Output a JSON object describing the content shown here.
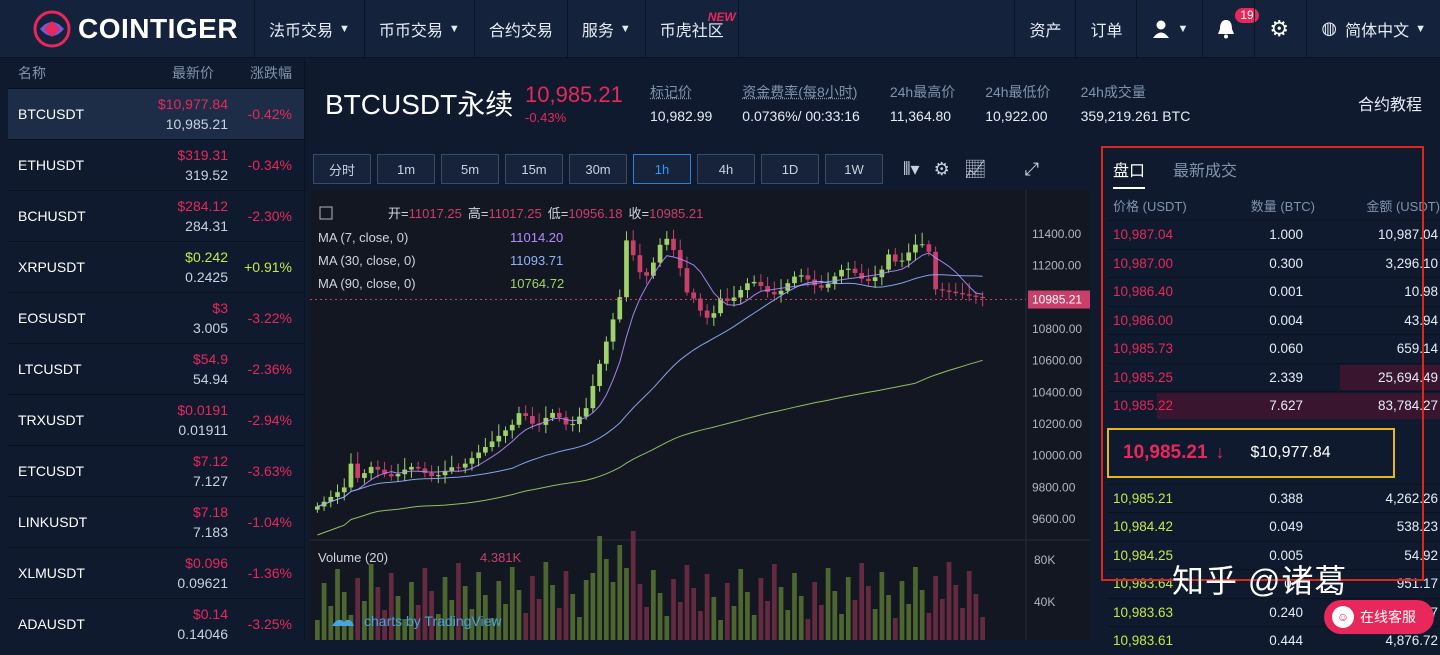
{
  "brand": {
    "name": "COINTIGER"
  },
  "nav": {
    "items": [
      {
        "label": "法币交易",
        "caret": true
      },
      {
        "label": "币币交易",
        "caret": true
      },
      {
        "label": "合约交易",
        "caret": false
      },
      {
        "label": "服务",
        "caret": true
      },
      {
        "label": "币虎社区",
        "caret": false,
        "badge": "NEW"
      }
    ],
    "right": {
      "assets": "资产",
      "orders": "订单",
      "notifications": "19",
      "language": "简体中文"
    }
  },
  "market": {
    "headers": {
      "name": "名称",
      "price": "最新价",
      "change": "涨跌幅"
    },
    "rows": [
      {
        "symbol": "BTCUSDT",
        "price_usd": "$10,977.84",
        "price": "10,985.21",
        "change": "-0.42%",
        "up": false
      },
      {
        "symbol": "ETHUSDT",
        "price_usd": "$319.31",
        "price": "319.52",
        "change": "-0.34%",
        "up": false
      },
      {
        "symbol": "BCHUSDT",
        "price_usd": "$284.12",
        "price": "284.31",
        "change": "-2.30%",
        "up": false
      },
      {
        "symbol": "XRPUSDT",
        "price_usd": "$0.242",
        "price": "0.2425",
        "change": "+0.91%",
        "up": true
      },
      {
        "symbol": "EOSUSDT",
        "price_usd": "$3",
        "price": "3.005",
        "change": "-3.22%",
        "up": false
      },
      {
        "symbol": "LTCUSDT",
        "price_usd": "$54.9",
        "price": "54.94",
        "change": "-2.36%",
        "up": false
      },
      {
        "symbol": "TRXUSDT",
        "price_usd": "$0.0191",
        "price": "0.01911",
        "change": "-2.94%",
        "up": false
      },
      {
        "symbol": "ETCUSDT",
        "price_usd": "$7.12",
        "price": "7.127",
        "change": "-3.63%",
        "up": false
      },
      {
        "symbol": "LINKUSDT",
        "price_usd": "$7.18",
        "price": "7.183",
        "change": "-1.04%",
        "up": false
      },
      {
        "symbol": "XLMUSDT",
        "price_usd": "$0.096",
        "price": "0.09621",
        "change": "-1.36%",
        "up": false
      },
      {
        "symbol": "ADAUSDT",
        "price_usd": "$0.14",
        "price": "0.14046",
        "change": "-3.25%",
        "up": false
      }
    ]
  },
  "ticker": {
    "title": "BTCUSDT永续",
    "last": "10,985.21",
    "change": "-0.43%",
    "stats": [
      {
        "label": "标记价",
        "value": "10,982.99",
        "dotted": true
      },
      {
        "label": "资金费率(每8小时)",
        "value": "0.0736%/ 00:33:16",
        "dotted": true
      },
      {
        "label": "24h最高价",
        "value": "11,364.80",
        "dotted": false
      },
      {
        "label": "24h最低价",
        "value": "10,922.00",
        "dotted": false
      },
      {
        "label": "24h成交量",
        "value": "359,219.261 BTC",
        "dotted": false
      }
    ],
    "tutorial": "合约教程"
  },
  "toolbar": {
    "timeframes": [
      "分时",
      "1m",
      "5m",
      "15m",
      "30m",
      "1h",
      "4h",
      "1D",
      "1W"
    ],
    "active": "1h"
  },
  "chart_data": {
    "type": "candlestick",
    "ohlc_label": {
      "open_label": "开=",
      "open": "11017.25",
      "high_label": "高=",
      "high": "11017.25",
      "low_label": "低=",
      "low": "10956.18",
      "close_label": "收=",
      "close": "10985.21"
    },
    "ma": [
      {
        "name": "MA (7, close, 0)",
        "value": "11014.20",
        "color": "#b48cff"
      },
      {
        "name": "MA (30, close, 0)",
        "value": "11093.71",
        "color": "#8fb4ff"
      },
      {
        "name": "MA (90, close, 0)",
        "value": "10764.72",
        "color": "#9fd36a"
      }
    ],
    "y_ticks": [
      "11400.00",
      "11200.00",
      "10800.00",
      "10600.00",
      "10400.00",
      "10200.00",
      "10000.00",
      "9800.00",
      "9600.00"
    ],
    "ylim": [
      9500,
      11550
    ],
    "last_price_tag": "10985.21",
    "volume": {
      "label": "Volume (20)",
      "value": "4.381K",
      "ticks": [
        "80K",
        "40K"
      ]
    },
    "watermark": "charts by TradingView",
    "colors": {
      "up": "#9fd36a",
      "down": "#c8406a"
    }
  },
  "book": {
    "tabs": [
      "盘口",
      "最新成交"
    ],
    "headers": {
      "price": "价格 (USDT)",
      "qty": "数量 (BTC)",
      "amount": "金额 (USDT)"
    },
    "asks": [
      {
        "price": "10,987.04",
        "qty": "1.000",
        "amount": "10,987.04",
        "depth": 0
      },
      {
        "price": "10,987.00",
        "qty": "0.300",
        "amount": "3,296.10",
        "depth": 0
      },
      {
        "price": "10,986.40",
        "qty": "0.001",
        "amount": "10.98",
        "depth": 0
      },
      {
        "price": "10,986.00",
        "qty": "0.004",
        "amount": "43.94",
        "depth": 0
      },
      {
        "price": "10,985.73",
        "qty": "0.060",
        "amount": "659.14",
        "depth": 0
      },
      {
        "price": "10,985.25",
        "qty": "2.339",
        "amount": "25,694.49",
        "depth": 0.3
      },
      {
        "price": "10,985.22",
        "qty": "7.627",
        "amount": "83,784.27",
        "depth": 0.85
      }
    ],
    "mid": {
      "price": "10,985.21",
      "usd": "$10,977.84"
    },
    "bids": [
      {
        "price": "10,985.21",
        "qty": "0.388",
        "amount": "4,262.26"
      },
      {
        "price": "10,984.42",
        "qty": "0.049",
        "amount": "538.23"
      },
      {
        "price": "10,984.25",
        "qty": "0.005",
        "amount": "54.92"
      },
      {
        "price": "10,983.64",
        "qty": "0.1",
        "amount": "951.17"
      },
      {
        "price": "10,983.63",
        "qty": "0.240",
        "amount": "2,636.07"
      },
      {
        "price": "10,983.61",
        "qty": "0.444",
        "amount": "4,876.72"
      }
    ]
  },
  "overlay": {
    "watermark": "知乎 @诸葛",
    "support": "在线客服"
  }
}
